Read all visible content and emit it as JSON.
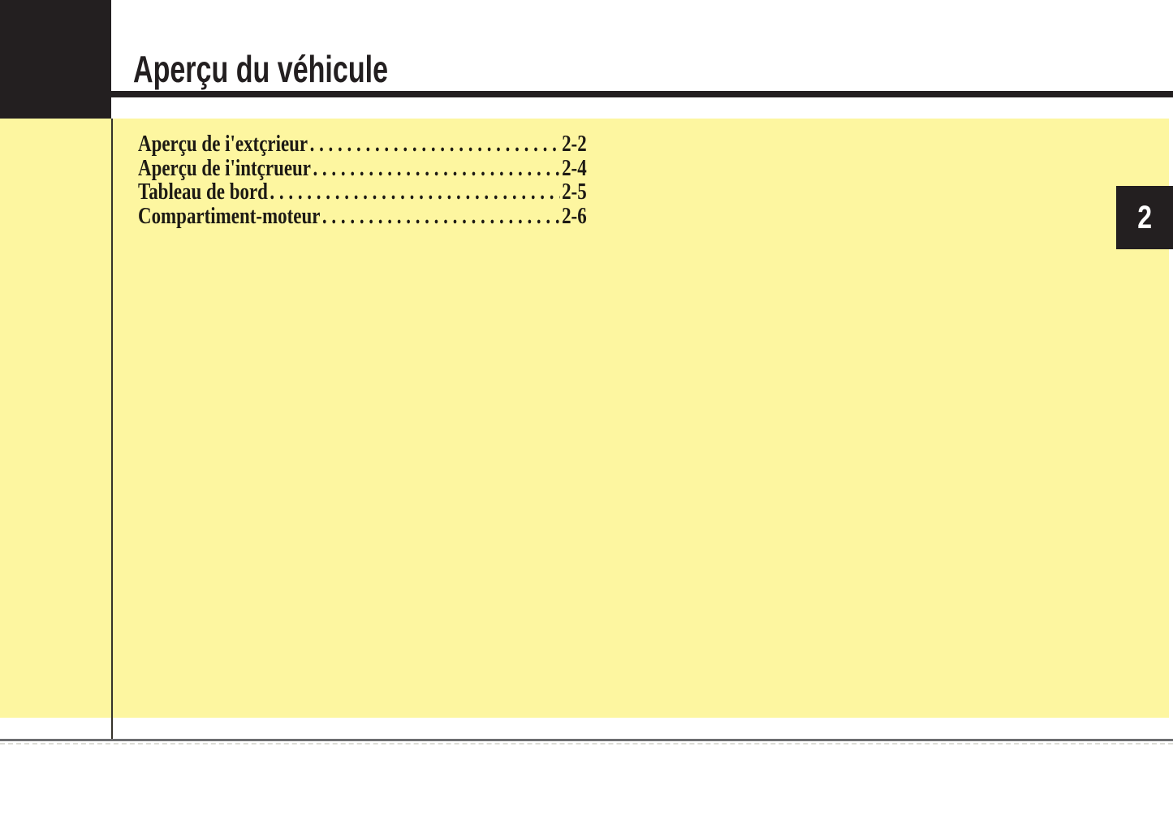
{
  "page": {
    "title": "Aperçu du véhicule",
    "chapter_tab_number": "2"
  },
  "toc": {
    "leader_dots": ". . . . . . . . . . . . . . . . . . . . . . . . . . . . . . . . . . . . . . . . . . . . . . . . . . . . . . . .",
    "items": [
      {
        "label": "Aperçu de i'extçrieur",
        "page": "2-2"
      },
      {
        "label": "Aperçu de i'intçrueur",
        "page": "2-4"
      },
      {
        "label": "Tableau de bord",
        "page": "2-5"
      },
      {
        "label": "Compartiment-moteur",
        "page": "2-6"
      }
    ]
  },
  "colors": {
    "panel_yellow": "#fdf6a0",
    "print_black": "#231f20",
    "rule_gray": "#6d6e71",
    "text_black": "#1d1a14"
  }
}
